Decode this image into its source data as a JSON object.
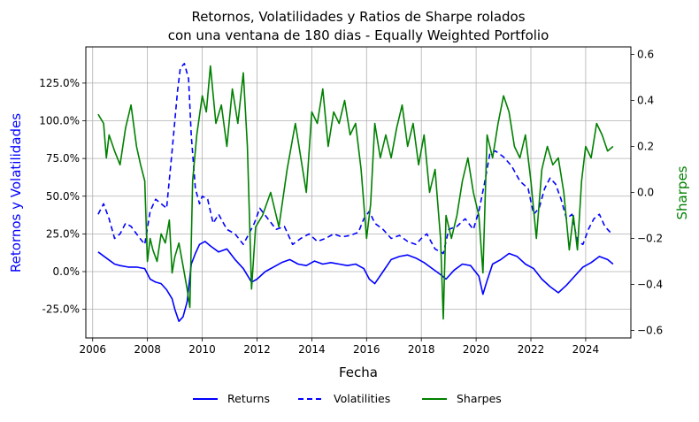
{
  "chart_data": {
    "type": "line",
    "title_line1": "Retornos, Volatilidades y Ratios de Sharpe rolados",
    "title_line2": "con una ventana de 180 dias - Equally Weighted Portfolio",
    "xlabel": "Fecha",
    "ylabel_left": "Retornos y Volatilidades",
    "ylabel_right": "Sharpes",
    "xlim": [
      2005.75,
      2025.65
    ],
    "ylim_left": [
      -0.44,
      1.49
    ],
    "ylim_right": [
      -0.6325,
      0.6325
    ],
    "x_ticks": [
      2006,
      2008,
      2010,
      2012,
      2014,
      2016,
      2018,
      2020,
      2022,
      2024
    ],
    "x_tick_labels": [
      "2006",
      "2008",
      "2010",
      "2012",
      "2014",
      "2016",
      "2018",
      "2020",
      "2022",
      "2024"
    ],
    "y_left_ticks": [
      -0.25,
      0,
      0.25,
      0.5,
      0.75,
      1.0,
      1.25
    ],
    "y_left_tick_labels": [
      "-25.0%",
      "0.0%",
      "25.0%",
      "50.0%",
      "75.0%",
      "100.0%",
      "125.0%"
    ],
    "y_right_ticks": [
      -0.6,
      -0.4,
      -0.2,
      0.0,
      0.2,
      0.4,
      0.6
    ],
    "y_right_tick_labels": [
      "−0.6",
      "−0.4",
      "−0.2",
      "0.0",
      "0.2",
      "0.4",
      "0.6"
    ],
    "grid": true,
    "legend_position": "bottom-center",
    "series": [
      {
        "name": "Returns",
        "axis": "left",
        "color": "#0000ff",
        "style": "solid",
        "x": [
          2006.2,
          2006.5,
          2006.8,
          2007.0,
          2007.3,
          2007.6,
          2007.9,
          2008.1,
          2008.3,
          2008.5,
          2008.7,
          2008.9,
          2009.0,
          2009.15,
          2009.3,
          2009.45,
          2009.6,
          2009.75,
          2009.9,
          2010.1,
          2010.3,
          2010.6,
          2010.9,
          2011.2,
          2011.5,
          2011.8,
          2012.0,
          2012.3,
          2012.6,
          2012.9,
          2013.2,
          2013.5,
          2013.8,
          2014.1,
          2014.4,
          2014.7,
          2015.0,
          2015.3,
          2015.6,
          2015.9,
          2016.1,
          2016.3,
          2016.6,
          2016.9,
          2017.2,
          2017.5,
          2017.8,
          2018.1,
          2018.4,
          2018.7,
          2018.9,
          2019.2,
          2019.5,
          2019.8,
          2020.1,
          2020.25,
          2020.4,
          2020.6,
          2020.9,
          2021.2,
          2021.5,
          2021.8,
          2022.1,
          2022.4,
          2022.7,
          2023.0,
          2023.3,
          2023.6,
          2023.9,
          2024.2,
          2024.5,
          2024.8,
          2025.0
        ],
        "values": [
          0.13,
          0.09,
          0.05,
          0.04,
          0.03,
          0.03,
          0.02,
          -0.05,
          -0.07,
          -0.08,
          -0.12,
          -0.18,
          -0.25,
          -0.33,
          -0.3,
          -0.2,
          0.05,
          0.12,
          0.18,
          0.2,
          0.17,
          0.13,
          0.15,
          0.08,
          0.02,
          -0.07,
          -0.05,
          0.0,
          0.03,
          0.06,
          0.08,
          0.05,
          0.04,
          0.07,
          0.05,
          0.06,
          0.05,
          0.04,
          0.05,
          0.02,
          -0.05,
          -0.08,
          0.0,
          0.08,
          0.1,
          0.11,
          0.09,
          0.06,
          0.02,
          -0.02,
          -0.05,
          0.01,
          0.05,
          0.04,
          -0.03,
          -0.15,
          -0.06,
          0.05,
          0.08,
          0.12,
          0.1,
          0.05,
          0.02,
          -0.05,
          -0.1,
          -0.14,
          -0.09,
          -0.03,
          0.03,
          0.06,
          0.1,
          0.08,
          0.05
        ]
      },
      {
        "name": "Volatilities",
        "axis": "left",
        "color": "#0000ff",
        "style": "dashed",
        "x": [
          2006.2,
          2006.4,
          2006.6,
          2006.8,
          2007.0,
          2007.2,
          2007.4,
          2007.6,
          2007.9,
          2008.1,
          2008.3,
          2008.5,
          2008.7,
          2008.9,
          2009.0,
          2009.1,
          2009.2,
          2009.35,
          2009.5,
          2009.6,
          2009.75,
          2009.9,
          2010.0,
          2010.2,
          2010.4,
          2010.6,
          2010.9,
          2011.2,
          2011.5,
          2011.7,
          2011.9,
          2012.1,
          2012.4,
          2012.7,
          2013.0,
          2013.3,
          2013.6,
          2013.9,
          2014.2,
          2014.5,
          2014.8,
          2015.1,
          2015.4,
          2015.7,
          2015.9,
          2016.1,
          2016.3,
          2016.6,
          2016.9,
          2017.2,
          2017.5,
          2017.8,
          2018.0,
          2018.2,
          2018.5,
          2018.8,
          2019.0,
          2019.3,
          2019.6,
          2019.9,
          2020.1,
          2020.3,
          2020.5,
          2020.7,
          2021.0,
          2021.3,
          2021.6,
          2021.9,
          2022.1,
          2022.3,
          2022.5,
          2022.7,
          2022.9,
          2023.1,
          2023.3,
          2023.5,
          2023.7,
          2023.9,
          2024.1,
          2024.3,
          2024.5,
          2024.7,
          2024.9,
          2025.0
        ],
        "values": [
          0.38,
          0.45,
          0.35,
          0.22,
          0.25,
          0.32,
          0.3,
          0.25,
          0.18,
          0.4,
          0.48,
          0.45,
          0.42,
          0.8,
          1.0,
          1.2,
          1.35,
          1.38,
          1.28,
          0.9,
          0.55,
          0.45,
          0.5,
          0.48,
          0.32,
          0.38,
          0.28,
          0.25,
          0.18,
          0.25,
          0.32,
          0.42,
          0.35,
          0.28,
          0.3,
          0.18,
          0.22,
          0.25,
          0.2,
          0.22,
          0.25,
          0.23,
          0.24,
          0.26,
          0.35,
          0.4,
          0.32,
          0.28,
          0.22,
          0.24,
          0.2,
          0.18,
          0.22,
          0.25,
          0.15,
          0.12,
          0.28,
          0.3,
          0.35,
          0.28,
          0.4,
          0.58,
          0.78,
          0.8,
          0.76,
          0.7,
          0.6,
          0.55,
          0.38,
          0.42,
          0.55,
          0.62,
          0.58,
          0.48,
          0.35,
          0.38,
          0.2,
          0.18,
          0.28,
          0.35,
          0.38,
          0.3,
          0.26,
          0.27
        ]
      },
      {
        "name": "Sharpes",
        "axis": "right",
        "color": "#008000",
        "style": "solid",
        "x": [
          2006.2,
          2006.3,
          2006.4,
          2006.5,
          2006.6,
          2006.8,
          2007.0,
          2007.2,
          2007.4,
          2007.6,
          2007.75,
          2007.9,
          2008.0,
          2008.1,
          2008.2,
          2008.35,
          2008.5,
          2008.65,
          2008.8,
          2008.9,
          2009.0,
          2009.15,
          2009.3,
          2009.45,
          2009.55,
          2009.65,
          2009.8,
          2010.0,
          2010.15,
          2010.3,
          2010.5,
          2010.7,
          2010.9,
          2011.1,
          2011.3,
          2011.5,
          2011.65,
          2011.8,
          2011.95,
          2012.2,
          2012.5,
          2012.8,
          2013.1,
          2013.4,
          2013.6,
          2013.8,
          2014.0,
          2014.2,
          2014.4,
          2014.6,
          2014.8,
          2015.0,
          2015.2,
          2015.4,
          2015.6,
          2015.8,
          2016.0,
          2016.15,
          2016.3,
          2016.5,
          2016.7,
          2016.9,
          2017.1,
          2017.3,
          2017.5,
          2017.7,
          2017.9,
          2018.1,
          2018.3,
          2018.5,
          2018.7,
          2018.8,
          2018.9,
          2019.1,
          2019.3,
          2019.5,
          2019.7,
          2019.9,
          2020.1,
          2020.25,
          2020.4,
          2020.6,
          2020.8,
          2021.0,
          2021.2,
          2021.4,
          2021.6,
          2021.8,
          2022.0,
          2022.2,
          2022.4,
          2022.6,
          2022.8,
          2023.0,
          2023.2,
          2023.4,
          2023.55,
          2023.7,
          2023.85,
          2024.0,
          2024.2,
          2024.4,
          2024.6,
          2024.8,
          2025.0
        ],
        "values": [
          0.34,
          0.32,
          0.3,
          0.15,
          0.25,
          0.18,
          0.12,
          0.28,
          0.38,
          0.2,
          0.12,
          0.05,
          -0.3,
          -0.2,
          -0.25,
          -0.3,
          -0.18,
          -0.22,
          -0.12,
          -0.35,
          -0.28,
          -0.22,
          -0.32,
          -0.42,
          -0.5,
          0.05,
          0.25,
          0.42,
          0.35,
          0.55,
          0.3,
          0.38,
          0.2,
          0.45,
          0.3,
          0.52,
          0.2,
          -0.42,
          -0.15,
          -0.1,
          0.0,
          -0.15,
          0.1,
          0.3,
          0.15,
          0.0,
          0.35,
          0.3,
          0.45,
          0.2,
          0.35,
          0.3,
          0.4,
          0.25,
          0.3,
          0.1,
          -0.2,
          -0.05,
          0.3,
          0.15,
          0.25,
          0.15,
          0.28,
          0.38,
          0.2,
          0.3,
          0.12,
          0.25,
          0.0,
          0.1,
          -0.2,
          -0.55,
          -0.1,
          -0.2,
          -0.1,
          0.05,
          0.15,
          0.0,
          -0.1,
          -0.35,
          0.25,
          0.15,
          0.3,
          0.42,
          0.35,
          0.2,
          0.15,
          0.25,
          0.05,
          -0.2,
          0.1,
          0.2,
          0.12,
          0.15,
          0.0,
          -0.25,
          -0.1,
          -0.25,
          0.05,
          0.2,
          0.15,
          0.3,
          0.25,
          0.18,
          0.2
        ]
      }
    ]
  }
}
